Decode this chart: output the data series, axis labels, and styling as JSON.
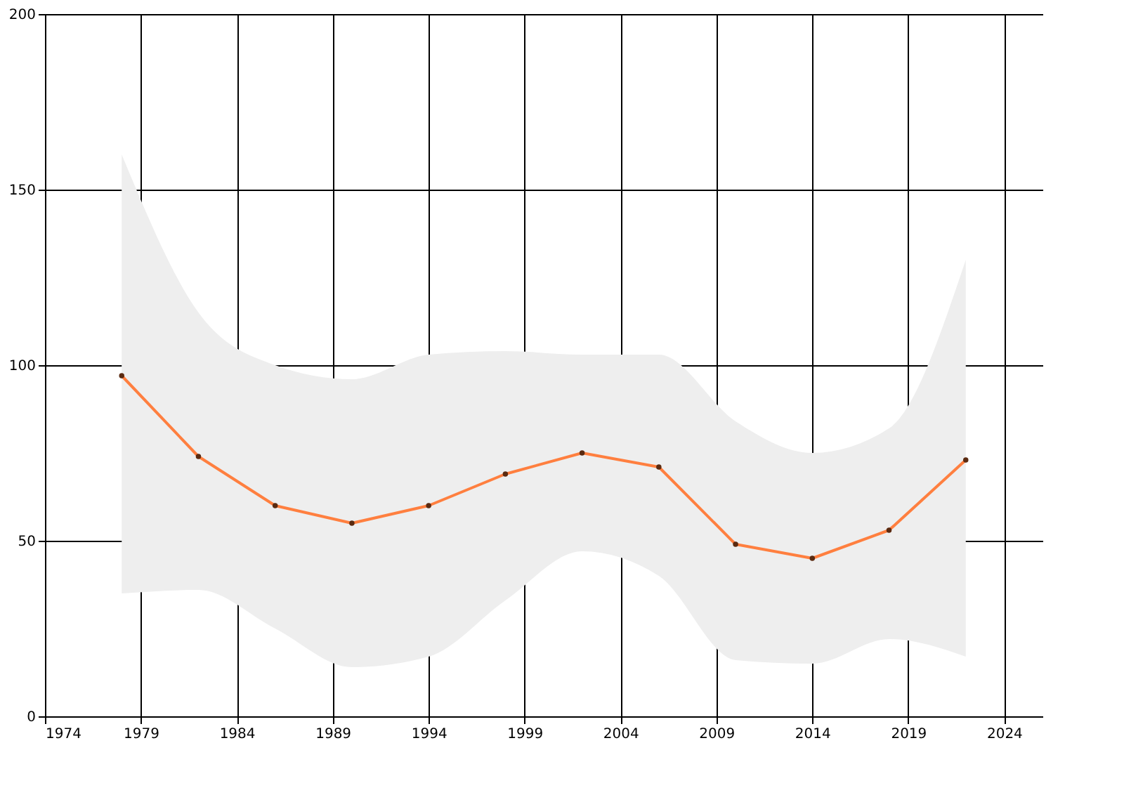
{
  "chart_data": {
    "type": "line",
    "x": [
      1978,
      1982,
      1986,
      1990,
      1994,
      1998,
      2002,
      2006,
      2010,
      2014,
      2018,
      2022
    ],
    "series": [
      {
        "color": "#ff7f3f",
        "values": [
          97,
          74,
          60,
          55,
          60,
          69,
          75,
          71,
          49,
          45,
          53,
          73
        ],
        "lower": [
          35,
          36,
          25,
          14,
          17,
          33,
          47,
          40,
          16,
          15,
          22,
          17
        ],
        "upper": [
          160,
          115,
          100,
          96,
          103,
          104,
          103,
          103,
          84,
          75,
          82,
          130
        ]
      }
    ],
    "xlim": [
      1974,
      2026
    ],
    "xticks": [
      1974,
      1979,
      1984,
      1989,
      1994,
      1999,
      2004,
      2009,
      2014,
      2019,
      2024
    ],
    "ylim": [
      0,
      200
    ],
    "yticks": [
      0,
      50,
      100,
      150,
      200
    ],
    "grid": true,
    "marker": "circle",
    "line_style": "solid"
  }
}
